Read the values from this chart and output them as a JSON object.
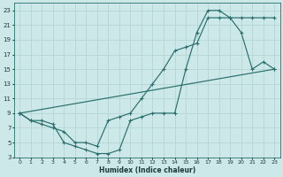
{
  "xlabel": "Humidex (Indice chaleur)",
  "bg_color": "#cde8e8",
  "line_color": "#2a6e6e",
  "grid_color": "#b8d8d8",
  "xlim": [
    -0.5,
    23.5
  ],
  "ylim": [
    3,
    24
  ],
  "xticks": [
    0,
    1,
    2,
    3,
    4,
    5,
    6,
    7,
    8,
    9,
    10,
    11,
    12,
    13,
    14,
    15,
    16,
    17,
    18,
    19,
    20,
    21,
    22,
    23
  ],
  "yticks": [
    3,
    5,
    7,
    9,
    11,
    13,
    15,
    17,
    19,
    21,
    23
  ],
  "line1_x": [
    0,
    1,
    2,
    3,
    4,
    5,
    6,
    7,
    8,
    9,
    10,
    11,
    12,
    13,
    14,
    15,
    16,
    17,
    18,
    19,
    20,
    21,
    22,
    23
  ],
  "line1_y": [
    9,
    8,
    8,
    7.5,
    5,
    4.5,
    4,
    3.5,
    3.5,
    4,
    8,
    8.5,
    9,
    9,
    9,
    15,
    20,
    23,
    23,
    22,
    22,
    22,
    22,
    22
  ],
  "line2_x": [
    0,
    1,
    2,
    3,
    4,
    5,
    6,
    7,
    8,
    9,
    10,
    11,
    12,
    13,
    14,
    15,
    16,
    17,
    18,
    19,
    20,
    21,
    22,
    23
  ],
  "line2_y": [
    9,
    8,
    7.5,
    7,
    6.5,
    5,
    5,
    4.5,
    8,
    8.5,
    9,
    11,
    13,
    15,
    17.5,
    18,
    18.5,
    22,
    22,
    22,
    20,
    15,
    16,
    15
  ],
  "line3_x": [
    0,
    23
  ],
  "line3_y": [
    9,
    15
  ]
}
